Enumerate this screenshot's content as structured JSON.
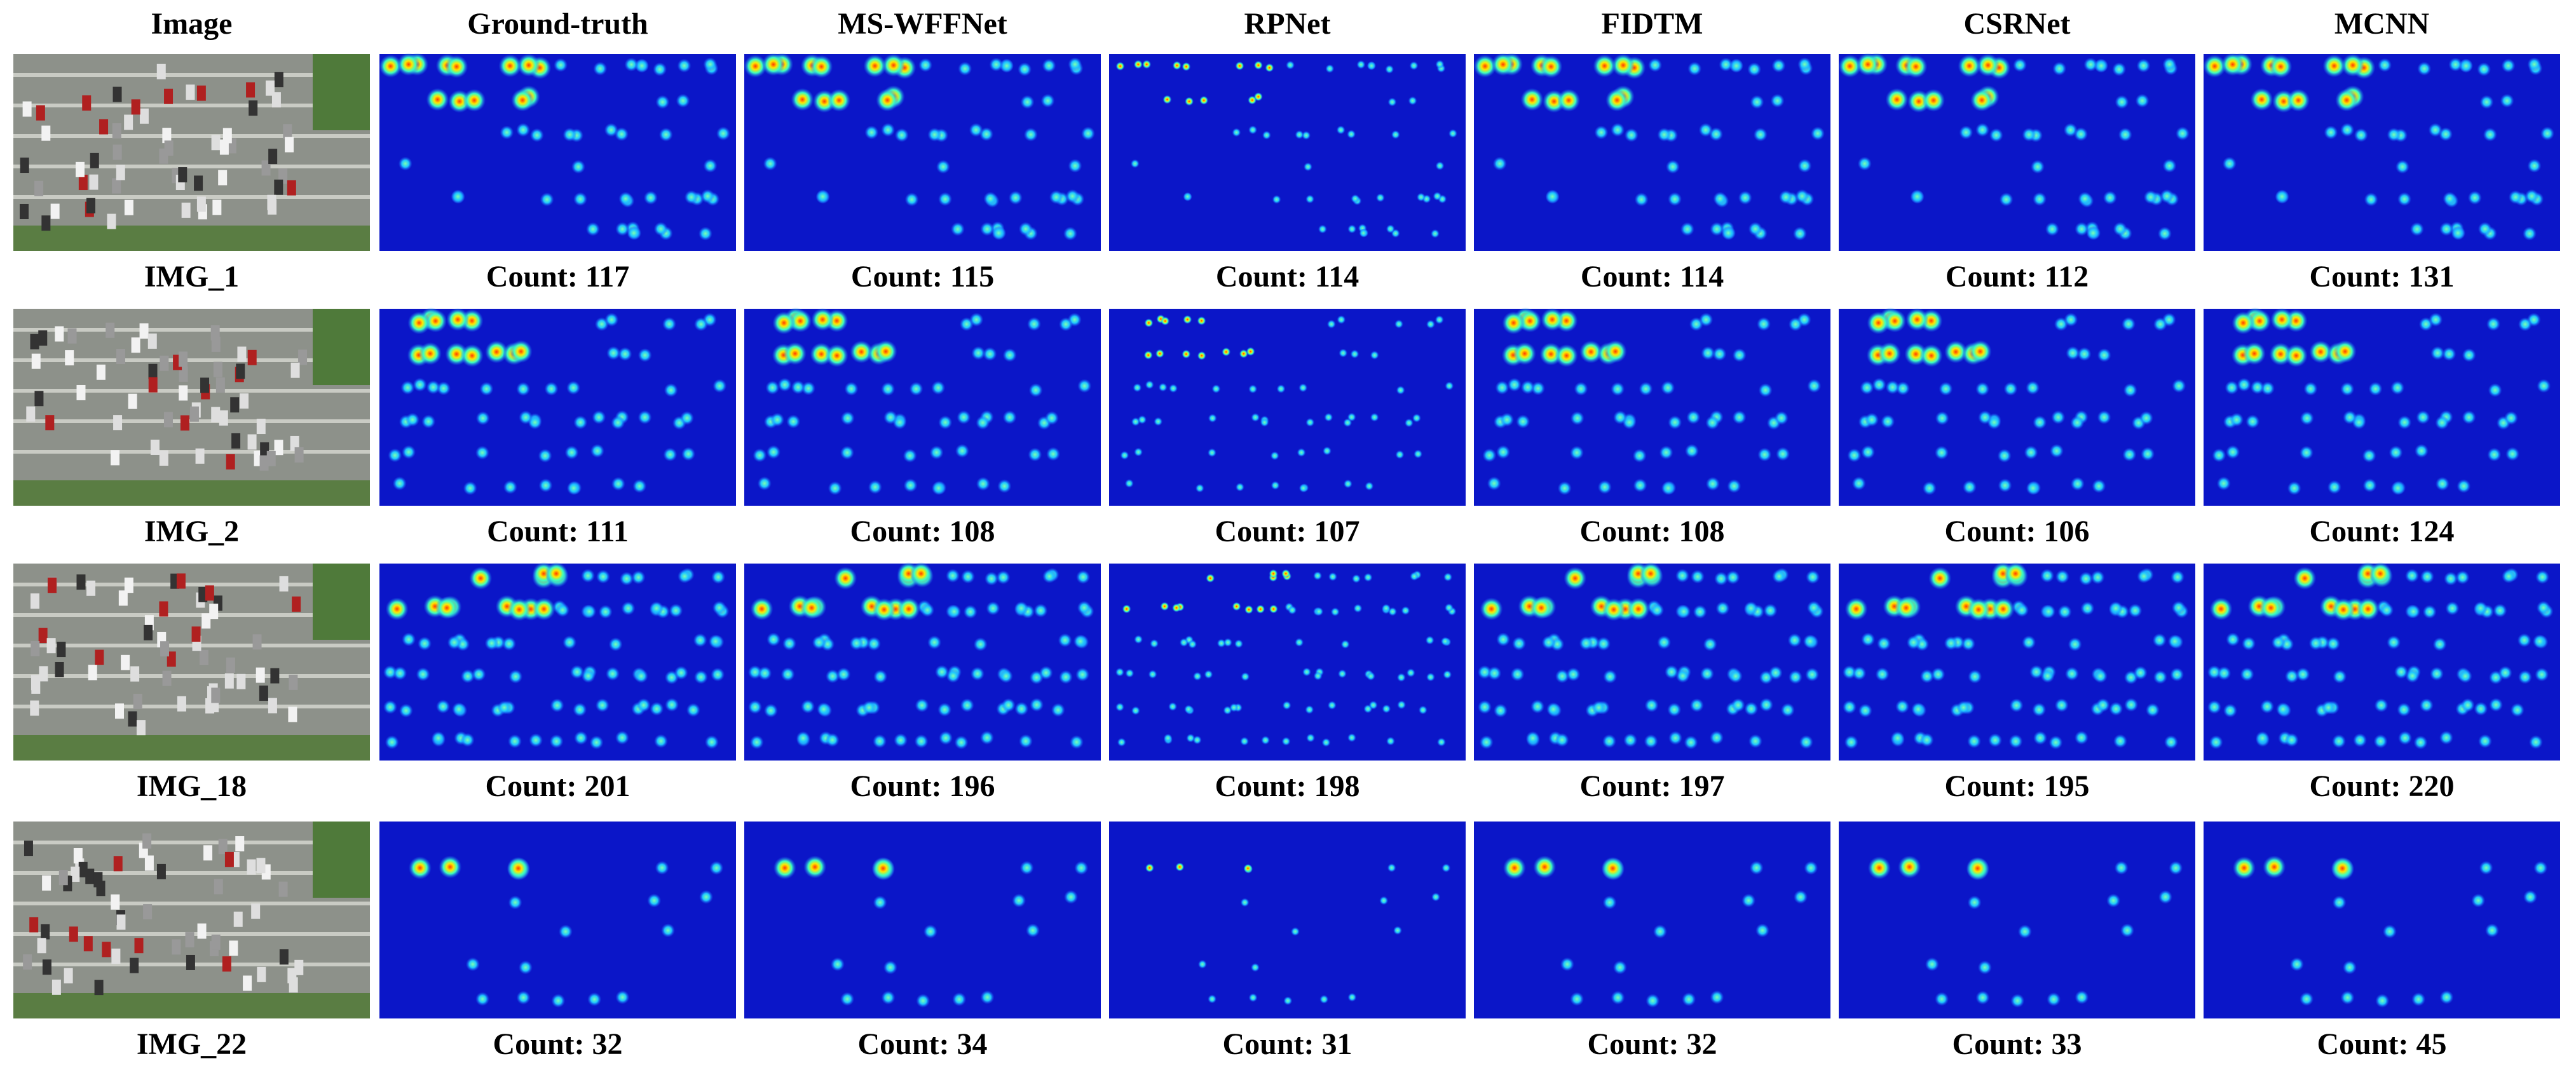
{
  "headers": [
    "Image",
    "Ground-truth",
    "MS-WFFNet",
    "RPNet",
    "FIDTM",
    "CSRNet",
    "MCNN"
  ],
  "rows": [
    {
      "image": "IMG_1",
      "counts": [
        "Count: 117",
        "Count: 115",
        "Count: 114",
        "Count: 114",
        "Count: 112",
        "Count: 131"
      ]
    },
    {
      "image": "IMG_2",
      "counts": [
        "Count: 111",
        "Count: 108",
        "Count: 107",
        "Count: 108",
        "Count: 106",
        "Count: 124"
      ]
    },
    {
      "image": "IMG_18",
      "counts": [
        "Count: 201",
        "Count: 196",
        "Count: 198",
        "Count: 197",
        "Count: 195",
        "Count: 220"
      ]
    },
    {
      "image": "IMG_22",
      "counts": [
        "Count: 32",
        "Count: 34",
        "Count: 31",
        "Count: 32",
        "Count: 33",
        "Count: 45"
      ]
    }
  ]
}
